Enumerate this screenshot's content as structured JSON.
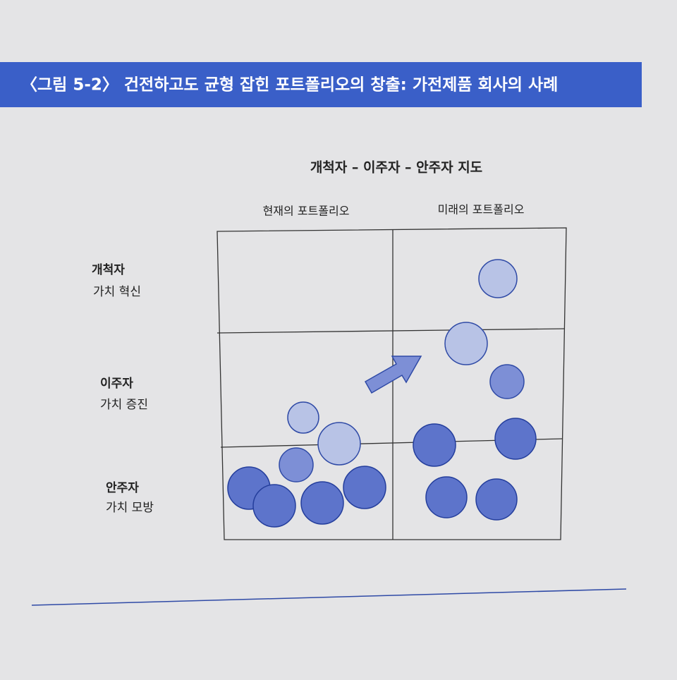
{
  "header": {
    "title": "〈그림 5-2〉 건전하고도 균형 잡힌 포트폴리오의 창출: 가전제품 회사의 사례"
  },
  "diagram": {
    "title": "개척자 – 이주자 – 안주자 지도",
    "columns": [
      "현재의 포트폴리오",
      "미래의 포트폴리오"
    ],
    "rows": [
      {
        "name": "개척자",
        "desc": "가치 혁신"
      },
      {
        "name": "이주자",
        "desc": "가치 증진"
      },
      {
        "name": "안주자",
        "desc": "가치 모방"
      }
    ]
  }
}
